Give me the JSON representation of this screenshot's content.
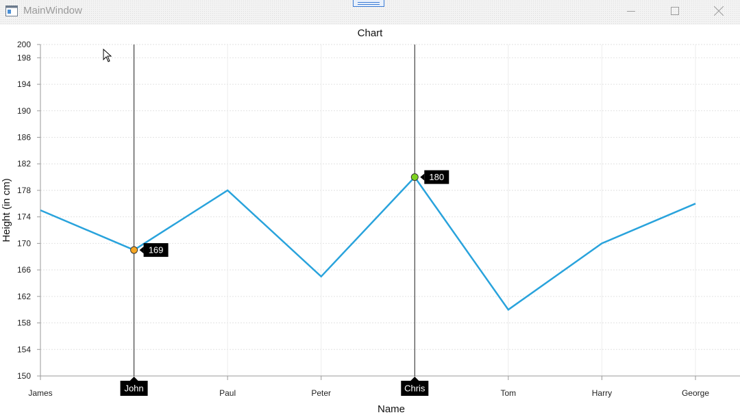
{
  "window": {
    "title": "MainWindow",
    "controls": {
      "minimize_icon": "minimize-icon",
      "maximize_icon": "maximize-icon",
      "close_icon": "close-icon"
    }
  },
  "chart_data": {
    "type": "line",
    "title": "Chart",
    "xlabel": "Name",
    "ylabel": "Height (in cm)",
    "categories": [
      "James",
      "John",
      "Paul",
      "Peter",
      "Chris",
      "Tom",
      "Harry",
      "George"
    ],
    "values": [
      175,
      169,
      178,
      165,
      180,
      160,
      170,
      176
    ],
    "ylim": [
      150,
      200
    ],
    "yticks": [
      150,
      154,
      158,
      162,
      166,
      170,
      174,
      178,
      182,
      186,
      190,
      194,
      198,
      200
    ],
    "grid": true,
    "line_color": "#29a3dc",
    "trackballs": [
      {
        "category_index": 1,
        "category_label": "John",
        "value_label": "169",
        "marker_color": "#f5a623"
      },
      {
        "category_index": 4,
        "category_label": "Chris",
        "value_label": "180",
        "marker_color": "#7ed321"
      }
    ]
  }
}
